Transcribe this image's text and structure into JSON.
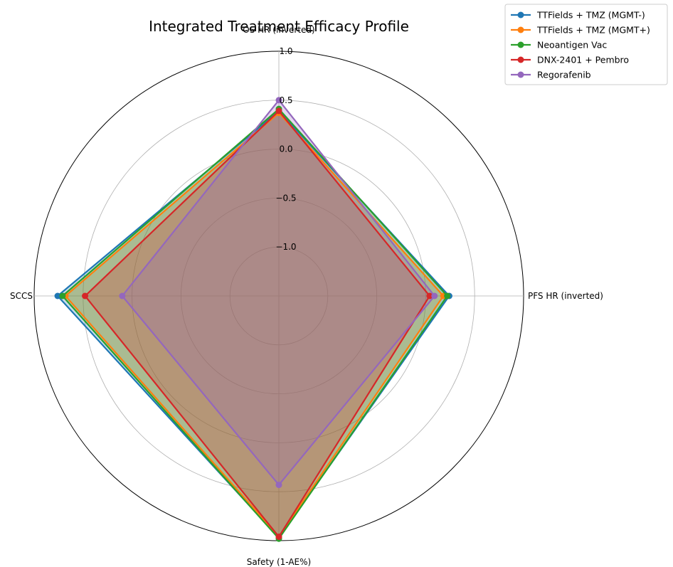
{
  "chart_data": {
    "type": "radar",
    "title": "Integrated Treatment Efficacy Profile",
    "axes": [
      "OS HR (inverted)",
      "PFS HR (inverted)",
      "Safety (1-AE%)",
      "SCCS"
    ],
    "rlim": [
      -1.5,
      1.0
    ],
    "rticks": [
      -1.0,
      -0.5,
      0.0,
      0.5,
      1.0
    ],
    "rtick_labels": [
      "−1.0",
      "−0.5",
      "0.0",
      "0.5",
      "1.0"
    ],
    "grid": true,
    "legend_position": "top-right",
    "series": [
      {
        "name": "TTFields + TMZ (MGMT-)",
        "color": "#1f77b4",
        "values": [
          0.39,
          0.24,
          0.97,
          0.76
        ]
      },
      {
        "name": "TTFields + TMZ (MGMT+)",
        "color": "#ff7f0e",
        "values": [
          0.37,
          0.18,
          0.96,
          0.68
        ]
      },
      {
        "name": "Neoantigen Vac",
        "color": "#2ca02c",
        "values": [
          0.41,
          0.22,
          0.98,
          0.71
        ]
      },
      {
        "name": "DNX-2401 + Pembro",
        "color": "#d62728",
        "values": [
          0.39,
          0.04,
          0.96,
          0.48
        ]
      },
      {
        "name": "Regorafenib",
        "color": "#9467bd",
        "values": [
          0.5,
          0.09,
          0.43,
          0.1
        ]
      }
    ]
  }
}
